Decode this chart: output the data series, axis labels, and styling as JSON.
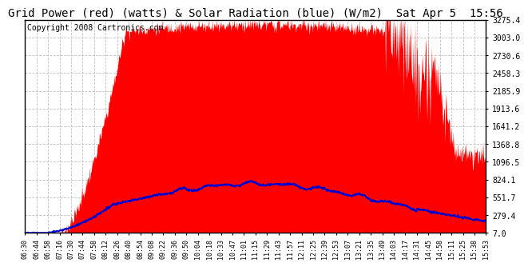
{
  "title": "Grid Power (red) (watts) & Solar Radiation (blue) (W/m2)  Sat Apr 5  15:56",
  "copyright": "Copyright 2008 Cartronics.com",
  "yticks": [
    7.0,
    279.4,
    551.7,
    824.1,
    1096.5,
    1368.8,
    1641.2,
    1913.6,
    2185.9,
    2458.3,
    2730.6,
    3003.0,
    3275.4
  ],
  "ymin": 7.0,
  "ymax": 3275.4,
  "xtick_labels": [
    "06:30",
    "06:44",
    "06:58",
    "07:16",
    "07:30",
    "07:44",
    "07:58",
    "08:12",
    "08:26",
    "08:40",
    "08:54",
    "09:08",
    "09:22",
    "09:36",
    "09:50",
    "10:04",
    "10:18",
    "10:33",
    "10:47",
    "11:01",
    "11:15",
    "11:29",
    "11:43",
    "11:57",
    "12:11",
    "12:25",
    "12:39",
    "12:53",
    "13:07",
    "13:21",
    "13:35",
    "13:49",
    "14:03",
    "14:17",
    "14:31",
    "14:45",
    "14:58",
    "15:11",
    "15:25",
    "15:38",
    "15:53"
  ],
  "background_color": "#ffffff",
  "grid_color": "#c0c0c0",
  "red_color": "#ff0000",
  "blue_color": "#0000cc",
  "title_fontsize": 10,
  "copyright_fontsize": 7
}
